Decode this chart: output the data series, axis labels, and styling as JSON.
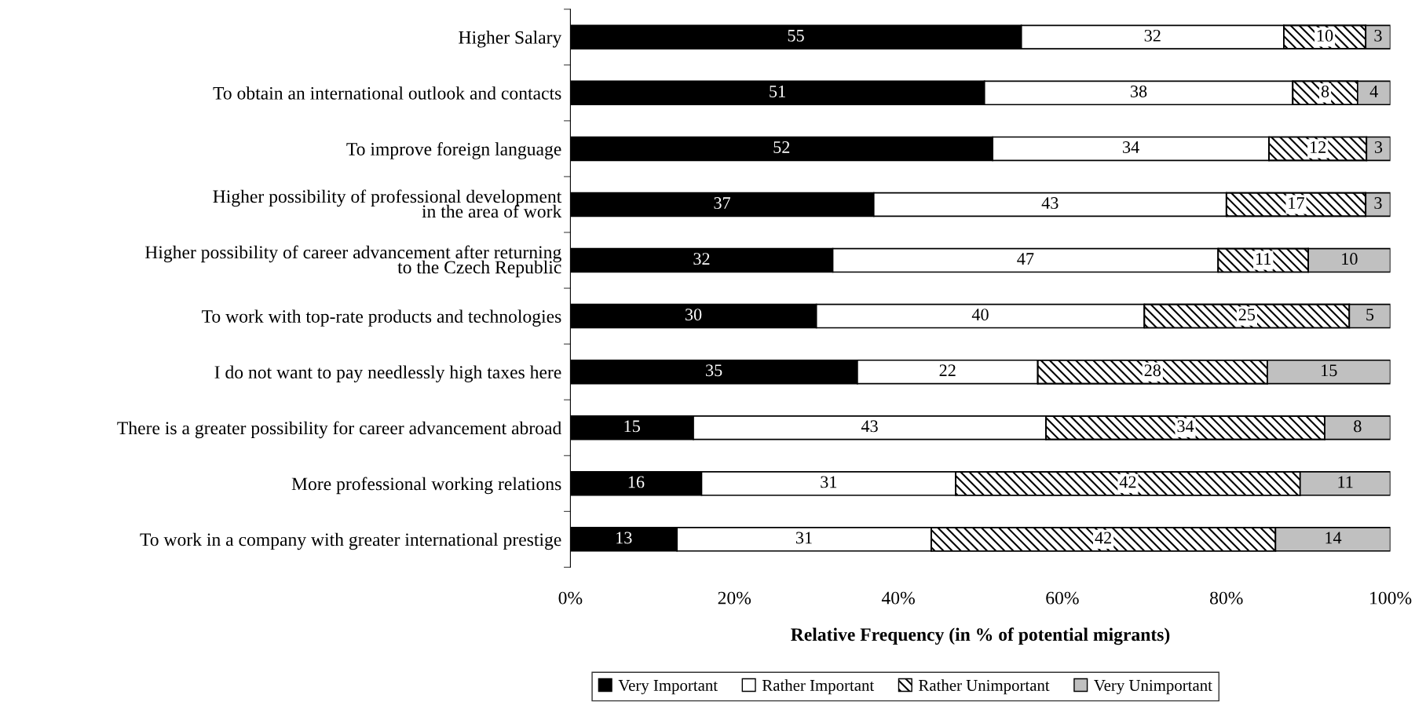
{
  "chart_data": {
    "type": "bar",
    "orientation": "horizontal",
    "stacked": true,
    "xlabel": "Relative Frequency (in % of potential migrants)",
    "categories": [
      "Higher Salary",
      "To obtain an international outlook and contacts",
      "To improve foreign language",
      "Higher possibility of professional development\nin the area of work",
      "Higher possibility of career advancement after returning\nto the Czech Republic",
      "To work with top-rate products and technologies",
      "I do not want to pay needlessly high taxes here",
      "There is a greater possibility for career advancement abroad",
      "More professional working relations",
      "To work in a company with greater international prestige"
    ],
    "series": [
      {
        "name": "Very Important",
        "color": "#000000",
        "values": [
          55,
          50.5,
          51.5,
          37,
          32,
          30,
          35,
          15,
          16,
          13
        ],
        "value_labels": [
          "55",
          "51",
          "52",
          "37",
          "32",
          "30",
          "35",
          "15",
          "16",
          "13"
        ]
      },
      {
        "name": "Rather Important",
        "color": "#ffffff",
        "values": [
          32,
          37.6,
          33.7,
          43,
          47,
          40,
          22,
          43,
          31,
          31
        ],
        "value_labels": [
          "32",
          "38",
          "34",
          "43",
          "47",
          "40",
          "22",
          "43",
          "31",
          "31"
        ]
      },
      {
        "name": "Rather Unimportant",
        "color": "#000000",
        "values": [
          10,
          7.9,
          11.9,
          17,
          11,
          25,
          28,
          34,
          42,
          42
        ],
        "value_labels": [
          "10",
          "8",
          "12",
          "17",
          "11",
          "25",
          "28",
          "34",
          "42",
          "42"
        ]
      },
      {
        "name": "Very Unimportant",
        "color": "#c0c0c0",
        "values": [
          3,
          4,
          2.9,
          3,
          10,
          5,
          15,
          8,
          11,
          14
        ],
        "value_labels": [
          "3",
          "4",
          "3",
          "3",
          "10",
          "5",
          "15",
          "8",
          "11",
          "14"
        ]
      }
    ],
    "xlim": [
      0,
      100
    ],
    "xticks": [
      {
        "value": 0,
        "label": "0%"
      },
      {
        "value": 20,
        "label": "20%"
      },
      {
        "value": 40,
        "label": "40%"
      },
      {
        "value": 60,
        "label": "60%"
      },
      {
        "value": 80,
        "label": "80%"
      },
      {
        "value": 100,
        "label": "100%"
      }
    ],
    "legend": "bottom",
    "grid": false
  }
}
